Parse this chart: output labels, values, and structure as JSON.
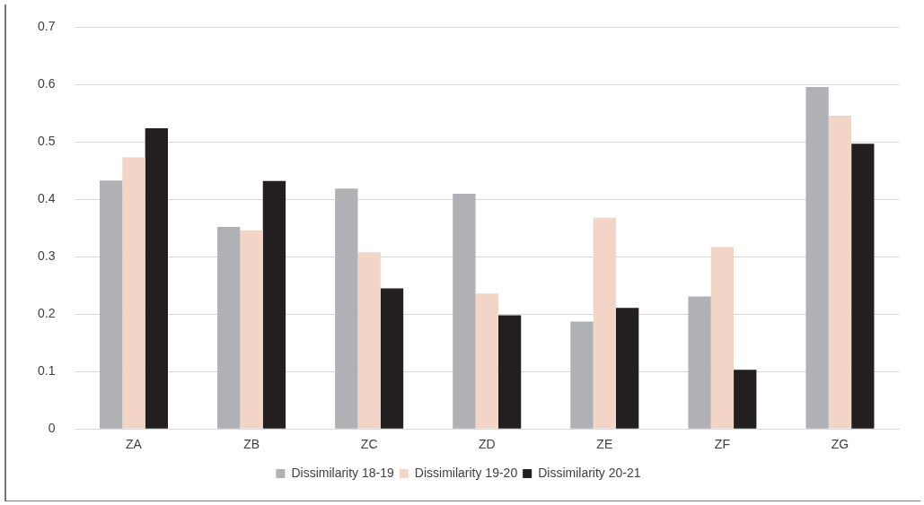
{
  "chart_data": {
    "type": "bar",
    "categories": [
      "ZA",
      "ZB",
      "ZC",
      "ZD",
      "ZE",
      "ZF",
      "ZG"
    ],
    "series": [
      {
        "name": "Dissimilarity 18-19",
        "color": "#b0b1b4",
        "values": [
          0.433,
          0.352,
          0.419,
          0.41,
          0.187,
          0.231,
          0.596
        ]
      },
      {
        "name": "Dissimilarity 19-20",
        "color": "#f2d5c6",
        "values": [
          0.473,
          0.346,
          0.308,
          0.236,
          0.368,
          0.317,
          0.546
        ]
      },
      {
        "name": "Dissimilarity 20-21",
        "color": "#231f20",
        "values": [
          0.524,
          0.432,
          0.245,
          0.198,
          0.211,
          0.103,
          0.497
        ]
      }
    ],
    "ylim": [
      0,
      0.7
    ],
    "yticks": [
      0,
      0.1,
      0.2,
      0.3,
      0.4,
      0.5,
      0.6,
      0.7
    ],
    "grid": "y",
    "legend": "bottom"
  }
}
